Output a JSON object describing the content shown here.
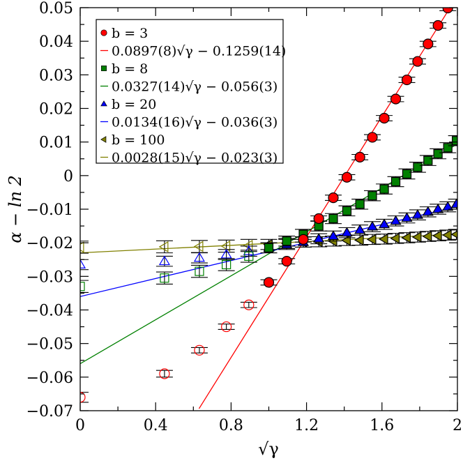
{
  "chart_data": {
    "type": "scatter",
    "title": "",
    "xlabel": "√γ",
    "ylabel": "α − ln 2",
    "xlim": [
      0,
      2
    ],
    "ylim": [
      -0.07,
      0.05
    ],
    "xticks": [
      "0",
      "0.4",
      "0.8",
      "1.2",
      "1.6",
      "2"
    ],
    "xtick_values": [
      0,
      0.4,
      0.8,
      1.2,
      1.6,
      2.0
    ],
    "yticks": [
      "0.05",
      "0.04",
      "0.03",
      "0.02",
      "0.01",
      "0",
      "−0.01",
      "−0.02",
      "−0.03",
      "−0.04",
      "−0.05",
      "−0.06",
      "−0.07"
    ],
    "ytick_values": [
      0.05,
      0.04,
      0.03,
      0.02,
      0.01,
      0,
      -0.01,
      -0.02,
      -0.03,
      -0.04,
      -0.05,
      -0.06,
      -0.07
    ],
    "grid": false,
    "legend_position": "upper-left",
    "legend": [
      {
        "label": "b = 3",
        "kind": "marker",
        "marker": "circle",
        "color": "#ff0000"
      },
      {
        "label": "0.0897(8)√γ − 0.1259(14)",
        "kind": "line",
        "color": "#ff0000"
      },
      {
        "label": "b = 8",
        "kind": "marker",
        "marker": "square",
        "color": "#008000"
      },
      {
        "label": "0.0327(14)√γ − 0.056(3)",
        "kind": "line",
        "color": "#008000"
      },
      {
        "label": "b = 20",
        "kind": "marker",
        "marker": "triangle-up",
        "color": "#0000ff"
      },
      {
        "label": "0.0134(16)√γ − 0.036(3)",
        "kind": "line",
        "color": "#0000ff"
      },
      {
        "label": "b = 100",
        "kind": "marker",
        "marker": "triangle-left",
        "color": "#808000"
      },
      {
        "label": "0.0028(15)√γ − 0.023(3)",
        "kind": "line",
        "color": "#808000"
      }
    ],
    "series": [
      {
        "name": "b = 3",
        "marker": "circle",
        "color": "#ff0000",
        "open": {
          "x": [
            0,
            0.447,
            0.632,
            0.775,
            0.894
          ],
          "y": [
            -0.066,
            -0.059,
            -0.052,
            -0.045,
            -0.0385
          ],
          "err": [
            0.0015,
            0.001,
            0.0008,
            0.0008,
            0.0008
          ]
        },
        "filled": {
          "x": [
            1.0,
            1.095,
            1.183,
            1.265,
            1.342,
            1.414,
            1.483,
            1.549,
            1.612,
            1.673,
            1.732,
            1.789,
            1.844,
            1.897,
            1.949
          ],
          "y": [
            -0.0318,
            -0.0255,
            -0.019,
            -0.0128,
            -0.0066,
            -0.0005,
            0.0055,
            0.0114,
            0.0171,
            0.0228,
            0.0285,
            0.034,
            0.0392,
            0.0447,
            0.0499
          ],
          "err": [
            0.0008,
            0.0008,
            0.0008,
            0.0008,
            0.0008,
            0.0008,
            0.0008,
            0.0008,
            0.0008,
            0.0008,
            0.0008,
            0.0008,
            0.0008,
            0.0008,
            0.0008
          ]
        },
        "fit": {
          "slope": 0.0897,
          "intercept": -0.1259,
          "x_from": 0.63,
          "x_to": 2.0
        }
      },
      {
        "name": "b = 8",
        "marker": "square",
        "color": "#008000",
        "open": {
          "x": [
            0,
            0.447,
            0.632,
            0.775,
            0.894
          ],
          "y": [
            -0.033,
            -0.0305,
            -0.0285,
            -0.0265,
            -0.024
          ],
          "err": [
            0.0018,
            0.0018,
            0.0018,
            0.0018,
            0.0018
          ]
        },
        "filled": {
          "x": [
            1.0,
            1.095,
            1.183,
            1.265,
            1.342,
            1.414,
            1.483,
            1.549,
            1.612,
            1.673,
            1.732,
            1.789,
            1.844,
            1.897,
            1.949,
            1.995
          ],
          "y": [
            -0.0215,
            -0.0195,
            -0.0175,
            -0.015,
            -0.0128,
            -0.0105,
            -0.0085,
            -0.006,
            -0.004,
            -0.0018,
            0.0005,
            0.0025,
            0.0045,
            0.0065,
            0.0083,
            0.0104
          ],
          "err": [
            0.0015,
            0.0015,
            0.0015,
            0.0015,
            0.0015,
            0.0015,
            0.0015,
            0.0015,
            0.0015,
            0.0015,
            0.0015,
            0.0015,
            0.0015,
            0.0015,
            0.0015,
            0.0015
          ]
        },
        "fit": {
          "slope": 0.0327,
          "intercept": -0.056,
          "x_from": 0,
          "x_to": 2.0
        }
      },
      {
        "name": "b = 20",
        "marker": "triangle-up",
        "color": "#0000ff",
        "open": {
          "x": [
            0,
            0.447,
            0.632,
            0.775,
            0.894
          ],
          "y": [
            -0.0265,
            -0.0255,
            -0.0245,
            -0.0235,
            -0.0225
          ],
          "err": [
            0.0015,
            0.0015,
            0.0015,
            0.0015,
            0.0015
          ]
        },
        "filled": {
          "x": [
            1.0,
            1.095,
            1.183,
            1.265,
            1.342,
            1.414,
            1.483,
            1.549,
            1.612,
            1.673,
            1.732,
            1.789,
            1.844,
            1.897,
            1.949,
            1.995
          ],
          "y": [
            -0.0215,
            -0.0205,
            -0.0198,
            -0.0188,
            -0.018,
            -0.017,
            -0.0162,
            -0.0152,
            -0.0145,
            -0.0135,
            -0.0126,
            -0.0117,
            -0.0108,
            -0.01,
            -0.0093,
            -0.0085
          ],
          "err": [
            0.0015,
            0.0015,
            0.0015,
            0.0015,
            0.0015,
            0.0015,
            0.0015,
            0.0015,
            0.0015,
            0.0015,
            0.0015,
            0.0015,
            0.0015,
            0.0015,
            0.0015,
            0.0015
          ]
        },
        "fit": {
          "slope": 0.0134,
          "intercept": -0.036,
          "x_from": 0,
          "x_to": 2.0
        }
      },
      {
        "name": "b = 100",
        "marker": "triangle-left",
        "color": "#808000",
        "open": {
          "x": [
            0,
            0.447,
            0.632,
            0.775,
            0.894
          ],
          "y": [
            -0.0213,
            -0.0212,
            -0.0211,
            -0.021,
            -0.0208
          ],
          "err": [
            0.0018,
            0.0018,
            0.0018,
            0.0018,
            0.0018
          ]
        },
        "filled": {
          "x": [
            1.0,
            1.095,
            1.183,
            1.265,
            1.342,
            1.414,
            1.483,
            1.549,
            1.612,
            1.673,
            1.732,
            1.789,
            1.844,
            1.897,
            1.949,
            1.995
          ],
          "y": [
            -0.0205,
            -0.0202,
            -0.0198,
            -0.0197,
            -0.0195,
            -0.0193,
            -0.0192,
            -0.019,
            -0.0189,
            -0.0187,
            -0.0185,
            -0.0183,
            -0.0181,
            -0.0179,
            -0.0177,
            -0.0175
          ],
          "err": [
            0.0015,
            0.0015,
            0.0015,
            0.0015,
            0.0015,
            0.0015,
            0.0015,
            0.0015,
            0.0015,
            0.0015,
            0.0015,
            0.0015,
            0.0015,
            0.0015,
            0.0015,
            0.0015
          ]
        },
        "fit": {
          "slope": 0.0028,
          "intercept": -0.023,
          "x_from": 0,
          "x_to": 2.0
        }
      }
    ]
  }
}
